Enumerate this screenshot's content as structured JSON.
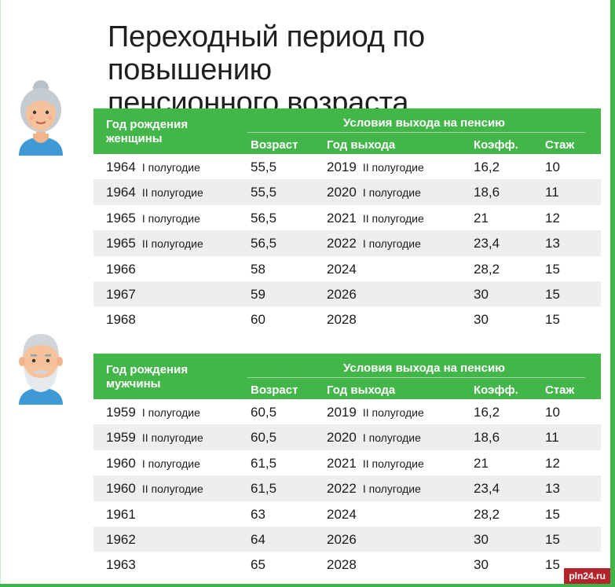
{
  "title_line1": "Переходный период по повышению",
  "title_line2": "пенсионного возраста",
  "women": {
    "birth_header_line1": "Год рождения",
    "birth_header_line2": "женщины",
    "conditions_header": "Условия выхода на пенсию",
    "columns": [
      "Возраст",
      "Год выхода",
      "Коэфф.",
      "Стаж"
    ],
    "rows": [
      {
        "birth": "1964",
        "birth_half": "I полугодие",
        "age": "55,5",
        "year": "2019",
        "year_half": "II полугодие",
        "coef": "16,2",
        "exp": "10"
      },
      {
        "birth": "1964",
        "birth_half": "II полугодие",
        "age": "55,5",
        "year": "2020",
        "year_half": "I полугодие",
        "coef": "18,6",
        "exp": "11"
      },
      {
        "birth": "1965",
        "birth_half": "I полугодие",
        "age": "56,5",
        "year": "2021",
        "year_half": "II полугодие",
        "coef": "21",
        "exp": "12"
      },
      {
        "birth": "1965",
        "birth_half": "II полугодие",
        "age": "56,5",
        "year": "2022",
        "year_half": "I полугодие",
        "coef": "23,4",
        "exp": "13"
      },
      {
        "birth": "1966",
        "birth_half": "",
        "age": "58",
        "year": "2024",
        "year_half": "",
        "coef": "28,2",
        "exp": "15"
      },
      {
        "birth": "1967",
        "birth_half": "",
        "age": "59",
        "year": "2026",
        "year_half": "",
        "coef": "30",
        "exp": "15"
      },
      {
        "birth": "1968",
        "birth_half": "",
        "age": "60",
        "year": "2028",
        "year_half": "",
        "coef": "30",
        "exp": "15"
      }
    ]
  },
  "men": {
    "birth_header_line1": "Год рождения",
    "birth_header_line2": "мужчины",
    "conditions_header": "Условия выхода на пенсию",
    "columns": [
      "Возраст",
      "Год выхода",
      "Коэфф.",
      "Стаж"
    ],
    "rows": [
      {
        "birth": "1959",
        "birth_half": "I полугодие",
        "age": "60,5",
        "year": "2019",
        "year_half": "II полугодие",
        "coef": "16,2",
        "exp": "10"
      },
      {
        "birth": "1959",
        "birth_half": "II полугодие",
        "age": "60,5",
        "year": "2020",
        "year_half": "I полугодие",
        "coef": "18,6",
        "exp": "11"
      },
      {
        "birth": "1960",
        "birth_half": "I полугодие",
        "age": "61,5",
        "year": "2021",
        "year_half": "II полугодие",
        "coef": "21",
        "exp": "12"
      },
      {
        "birth": "1960",
        "birth_half": "II полугодие",
        "age": "61,5",
        "year": "2022",
        "year_half": "I полугодие",
        "coef": "23,4",
        "exp": "13"
      },
      {
        "birth": "1961",
        "birth_half": "",
        "age": "63",
        "year": "2024",
        "year_half": "",
        "coef": "28,2",
        "exp": "15"
      },
      {
        "birth": "1962",
        "birth_half": "",
        "age": "64",
        "year": "2026",
        "year_half": "",
        "coef": "30",
        "exp": "15"
      },
      {
        "birth": "1963",
        "birth_half": "",
        "age": "65",
        "year": "2028",
        "year_half": "",
        "coef": "30",
        "exp": "15"
      }
    ]
  },
  "icons": {
    "woman": "elderly-woman-icon",
    "man": "elderly-man-icon"
  },
  "colors": {
    "header_green": "#43b649",
    "row_alt": "#eeeeee",
    "watermark_red": "#b4252b"
  },
  "watermark": "pln24.ru"
}
